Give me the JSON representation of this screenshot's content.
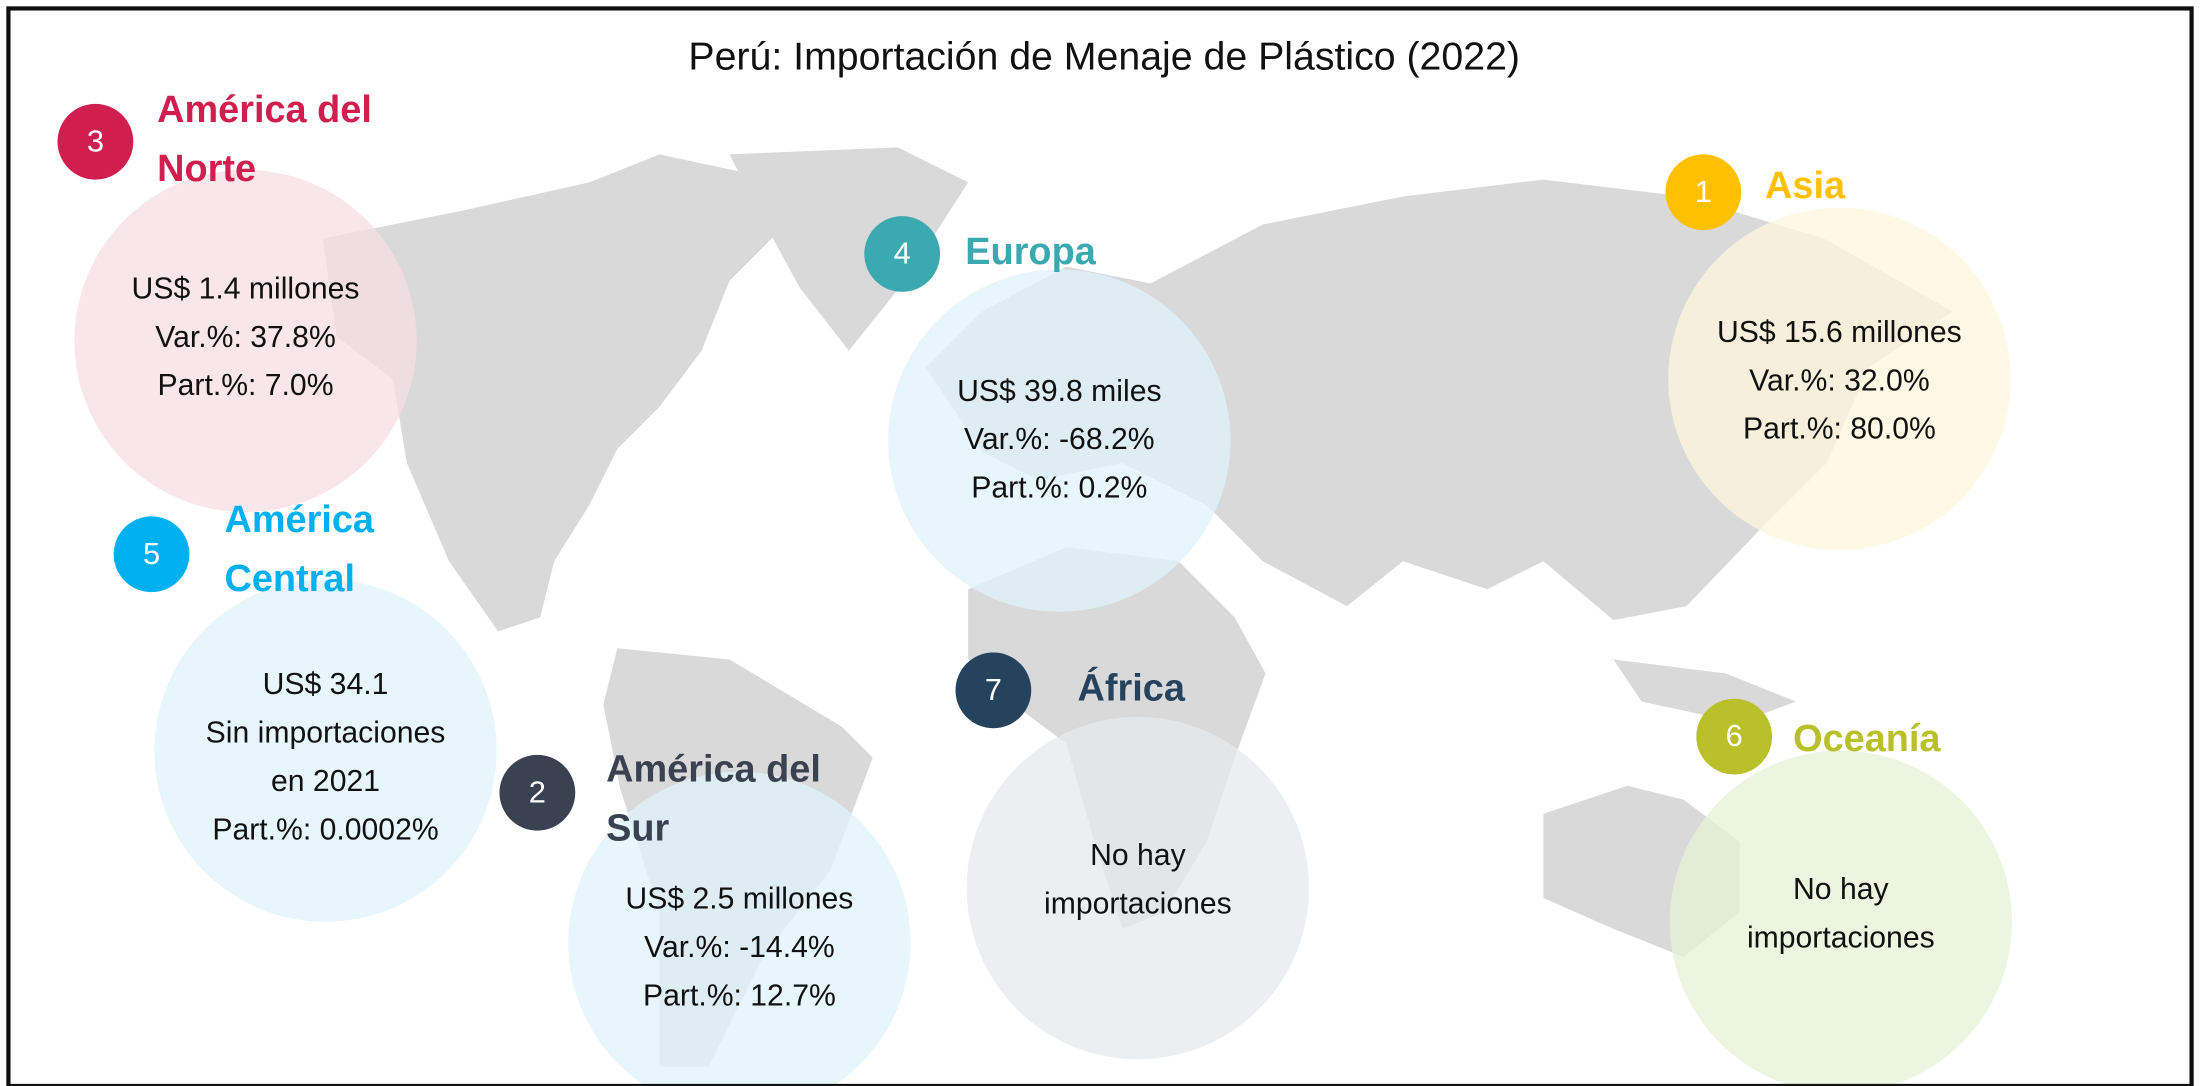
{
  "title": "Perú: Importación de Menaje de Plástico (2022)",
  "regions": [
    {
      "rank": 3,
      "name_lines": [
        "América del",
        "Norte"
      ],
      "color": "#d01f4f",
      "bubble": "#f5dde3",
      "lines": [
        "US$ 1.4 millones",
        "Var.%: 37.8%",
        "Part.%: 7.0%"
      ]
    },
    {
      "rank": 5,
      "name_lines": [
        "América",
        "Central"
      ],
      "color": "#00b0f0",
      "bubble": "#dff1fb",
      "lines": [
        "US$ 34.1",
        "Sin importaciones",
        "en 2021",
        "Part.%: 0.0002%"
      ]
    },
    {
      "rank": 2,
      "name_lines": [
        "América del",
        "Sur"
      ],
      "color": "#3a4150",
      "bubble": "#dff1fb",
      "lines": [
        "US$ 2.5 millones",
        "Var.%: -14.4%",
        "Part.%: 12.7%"
      ]
    },
    {
      "rank": 4,
      "name_lines": [
        "Europa"
      ],
      "color": "#3aa9b0",
      "bubble": "#dff1fb",
      "lines": [
        "US$ 39.8 miles",
        "Var.%: -68.2%",
        "Part.%: 0.2%"
      ]
    },
    {
      "rank": 7,
      "name_lines": [
        "África"
      ],
      "color": "#26435e",
      "bubble": "#e6e9ee",
      "lines": [
        "No hay",
        "importaciones"
      ]
    },
    {
      "rank": 1,
      "name_lines": [
        "Asia"
      ],
      "color": "#ffc000",
      "bubble": "#fdf5dc",
      "lines": [
        "US$ 15.6 millones",
        "Var.%: 32.0%",
        "Part.%: 80.0%"
      ]
    },
    {
      "rank": 6,
      "name_lines": [
        "Oceanía"
      ],
      "color": "#b9c02a",
      "bubble": "#e4f2d5",
      "lines": [
        "No hay",
        "importaciones"
      ]
    }
  ]
}
